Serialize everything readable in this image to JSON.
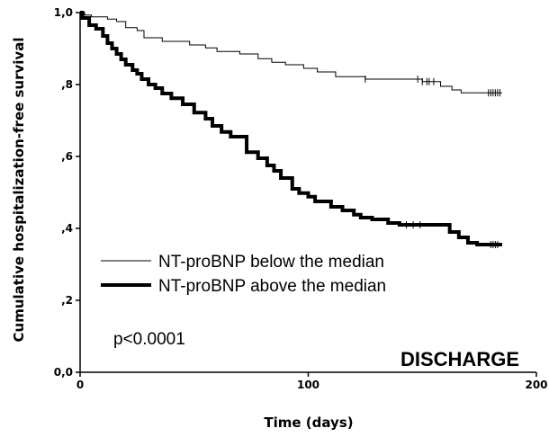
{
  "chart_data": {
    "type": "line",
    "step": true,
    "xlabel": "Time (days)",
    "ylabel": "Cumulative hospitalization-free survival",
    "xlim": [
      0,
      200
    ],
    "ylim": [
      0,
      1
    ],
    "x_ticks": [
      "0",
      "100",
      "200"
    ],
    "x_tick_values": [
      0,
      100,
      200
    ],
    "y_ticks": [
      "0,0",
      ",2",
      ",4",
      ",6",
      ",8",
      "1,0"
    ],
    "y_tick_values": [
      0,
      0.2,
      0.4,
      0.6,
      0.8,
      1.0
    ],
    "grid": false,
    "legend_position": "bottom-left",
    "series": [
      {
        "name": "NT-proBNP below the median",
        "line_weight": "thin",
        "x": [
          0,
          2,
          5,
          12,
          16,
          20,
          25,
          28,
          36,
          48,
          55,
          60,
          70,
          78,
          84,
          90,
          98,
          104,
          112,
          125,
          150,
          158,
          163,
          167,
          185
        ],
        "y": [
          1.0,
          0.993,
          0.988,
          0.982,
          0.975,
          0.958,
          0.95,
          0.93,
          0.92,
          0.91,
          0.902,
          0.892,
          0.885,
          0.872,
          0.862,
          0.855,
          0.845,
          0.835,
          0.822,
          0.815,
          0.808,
          0.795,
          0.785,
          0.777,
          0.777
        ],
        "censor_x": [
          125,
          148,
          150,
          152,
          153,
          155,
          179,
          180,
          181,
          182,
          183,
          184
        ]
      },
      {
        "name": "NT-proBNP above the median",
        "line_weight": "thick",
        "x": [
          0,
          1,
          4,
          7,
          10,
          12,
          14,
          16,
          18,
          20,
          23,
          25,
          27,
          30,
          33,
          36,
          40,
          45,
          50,
          55,
          58,
          62,
          66,
          73,
          78,
          82,
          85,
          88,
          93,
          96,
          100,
          103,
          110,
          115,
          120,
          123,
          128,
          135,
          140,
          162,
          166,
          170,
          174,
          185
        ],
        "y": [
          1.0,
          0.985,
          0.965,
          0.955,
          0.935,
          0.915,
          0.9,
          0.885,
          0.87,
          0.855,
          0.84,
          0.83,
          0.815,
          0.8,
          0.79,
          0.775,
          0.762,
          0.745,
          0.722,
          0.705,
          0.685,
          0.668,
          0.655,
          0.612,
          0.595,
          0.575,
          0.56,
          0.54,
          0.51,
          0.498,
          0.488,
          0.475,
          0.46,
          0.45,
          0.438,
          0.43,
          0.425,
          0.415,
          0.41,
          0.39,
          0.375,
          0.36,
          0.355,
          0.355
        ],
        "censor_x": [
          143,
          146,
          149,
          180,
          181,
          182,
          183
        ]
      }
    ],
    "annotations": [
      "p<0.0001",
      "DISCHARGE"
    ]
  }
}
